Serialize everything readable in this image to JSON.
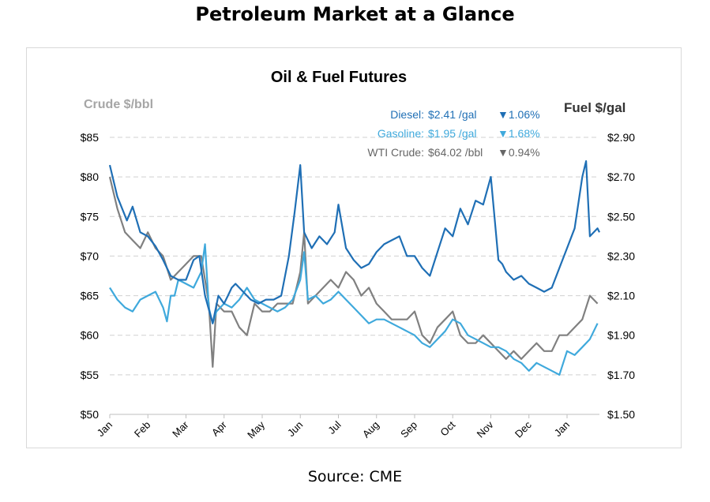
{
  "page_title": "Petroleum Market at a Glance",
  "source": "Source: CME",
  "colors": {
    "diesel": "#1f6fb5",
    "gasoline": "#3fa9dc",
    "crude": "#808080",
    "grid": "#d0d0d0",
    "legend_gray": "#666666"
  },
  "chart_data": {
    "type": "line",
    "title": "Oil & Fuel Futures",
    "y_left_label": "Crude $/bbl",
    "y_right_label": "Fuel $/gal",
    "y_left_lim": [
      50,
      85
    ],
    "y_right_lim": [
      1.5,
      2.9
    ],
    "y_left_ticks": [
      "$85",
      "$80",
      "$75",
      "$70",
      "$65",
      "$60",
      "$55",
      "$50"
    ],
    "y_right_ticks": [
      "$2.90",
      "$2.70",
      "$2.50",
      "$2.30",
      "$2.10",
      "$1.90",
      "$1.70",
      "$1.50"
    ],
    "x_ticks": [
      "Jan",
      "Feb",
      "Mar",
      "Apr",
      "May",
      "Jun",
      "Jul",
      "Aug",
      "Sep",
      "Oct",
      "Nov",
      "Dec",
      "Jan"
    ],
    "grid": "horizontal dashed",
    "legend": [
      {
        "name": "Diesel:",
        "price": "$2.41 /gal",
        "change": "▼1.06%"
      },
      {
        "name": "Gasoline:",
        "price": "$1.95 /gal",
        "change": "▼1.68%"
      },
      {
        "name": "WTI Crude:",
        "price": "$64.02 /bbl",
        "change": "▼0.94%"
      }
    ],
    "series": [
      {
        "name": "Diesel",
        "axis": "right",
        "x": [
          0,
          0.2,
          0.45,
          0.6,
          0.8,
          1.0,
          1.2,
          1.4,
          1.6,
          1.8,
          2.0,
          2.2,
          2.35,
          2.5,
          2.7,
          2.85,
          3.0,
          3.1,
          3.2,
          3.3,
          3.5,
          3.7,
          3.9,
          4.1,
          4.3,
          4.5,
          4.7,
          4.85,
          5.0,
          5.1,
          5.2,
          5.3,
          5.5,
          5.7,
          5.9,
          6.0,
          6.2,
          6.4,
          6.6,
          6.8,
          7.0,
          7.2,
          7.4,
          7.6,
          7.8,
          8.0,
          8.2,
          8.4,
          8.6,
          8.8,
          9.0,
          9.2,
          9.4,
          9.6,
          9.8,
          10.0,
          10.2,
          10.3,
          10.4,
          10.5,
          10.6,
          10.8,
          11.0,
          11.2,
          11.4,
          11.6,
          11.8,
          12.0,
          12.2,
          12.4,
          12.5,
          12.6,
          12.7,
          12.8,
          12.85
        ],
        "y": [
          2.76,
          2.6,
          2.48,
          2.55,
          2.42,
          2.4,
          2.35,
          2.28,
          2.2,
          2.18,
          2.18,
          2.28,
          2.3,
          2.1,
          1.96,
          2.1,
          2.06,
          2.1,
          2.14,
          2.16,
          2.12,
          2.08,
          2.06,
          2.08,
          2.08,
          2.1,
          2.3,
          2.52,
          2.76,
          2.42,
          2.38,
          2.34,
          2.4,
          2.36,
          2.42,
          2.56,
          2.34,
          2.28,
          2.24,
          2.26,
          2.32,
          2.36,
          2.38,
          2.4,
          2.3,
          2.3,
          2.24,
          2.2,
          2.32,
          2.44,
          2.4,
          2.54,
          2.46,
          2.58,
          2.56,
          2.7,
          2.28,
          2.26,
          2.22,
          2.2,
          2.18,
          2.2,
          2.16,
          2.14,
          2.12,
          2.14,
          2.24,
          2.34,
          2.44,
          2.7,
          2.78,
          2.4,
          2.42,
          2.44,
          2.42
        ]
      },
      {
        "name": "Gasoline",
        "axis": "right",
        "x": [
          0,
          0.2,
          0.4,
          0.6,
          0.8,
          1.0,
          1.2,
          1.4,
          1.5,
          1.6,
          1.7,
          1.8,
          2.0,
          2.2,
          2.4,
          2.5,
          2.6,
          2.7,
          2.8,
          3.0,
          3.2,
          3.4,
          3.6,
          3.8,
          4.0,
          4.2,
          4.4,
          4.6,
          4.8,
          5.0,
          5.1,
          5.2,
          5.4,
          5.6,
          5.8,
          6.0,
          6.2,
          6.4,
          6.6,
          6.8,
          7.0,
          7.2,
          7.4,
          7.6,
          7.8,
          8.0,
          8.2,
          8.4,
          8.6,
          8.8,
          9.0,
          9.2,
          9.4,
          9.6,
          9.8,
          10.0,
          10.2,
          10.4,
          10.6,
          10.8,
          11.0,
          11.2,
          11.4,
          11.6,
          11.8,
          12.0,
          12.2,
          12.4,
          12.6,
          12.8
        ],
        "y": [
          2.14,
          2.08,
          2.04,
          2.02,
          2.08,
          2.1,
          2.12,
          2.04,
          1.97,
          2.1,
          2.1,
          2.18,
          2.16,
          2.14,
          2.22,
          2.36,
          2.04,
          1.96,
          2.02,
          2.06,
          2.04,
          2.08,
          2.14,
          2.08,
          2.06,
          2.04,
          2.02,
          2.04,
          2.08,
          2.18,
          2.32,
          2.08,
          2.1,
          2.06,
          2.08,
          2.12,
          2.08,
          2.04,
          2.0,
          1.96,
          1.98,
          1.98,
          1.96,
          1.94,
          1.92,
          1.9,
          1.86,
          1.84,
          1.88,
          1.92,
          1.98,
          1.96,
          1.9,
          1.88,
          1.86,
          1.84,
          1.84,
          1.82,
          1.78,
          1.76,
          1.72,
          1.76,
          1.74,
          1.72,
          1.7,
          1.82,
          1.8,
          1.84,
          1.88,
          1.96
        ]
      },
      {
        "name": "WTI Crude",
        "axis": "left",
        "x": [
          0,
          0.2,
          0.4,
          0.6,
          0.8,
          1.0,
          1.2,
          1.4,
          1.6,
          1.8,
          2.0,
          2.2,
          2.4,
          2.6,
          2.7,
          2.8,
          3.0,
          3.2,
          3.4,
          3.6,
          3.8,
          4.0,
          4.2,
          4.4,
          4.6,
          4.8,
          5.0,
          5.1,
          5.2,
          5.4,
          5.6,
          5.8,
          6.0,
          6.2,
          6.4,
          6.6,
          6.8,
          7.0,
          7.2,
          7.4,
          7.6,
          7.8,
          8.0,
          8.2,
          8.4,
          8.6,
          8.8,
          9.0,
          9.2,
          9.4,
          9.6,
          9.8,
          10.0,
          10.2,
          10.4,
          10.6,
          10.8,
          11.0,
          11.2,
          11.4,
          11.6,
          11.8,
          12.0,
          12.2,
          12.4,
          12.6,
          12.8
        ],
        "y": [
          80,
          76,
          73,
          72,
          71,
          73,
          71,
          70,
          67,
          68,
          69,
          70,
          70,
          64,
          56,
          64,
          63,
          63,
          61,
          60,
          64,
          63,
          63,
          64,
          64,
          64,
          68,
          73,
          64,
          65,
          66,
          67,
          66,
          68,
          67,
          65,
          66,
          64,
          63,
          62,
          62,
          62,
          63,
          60,
          59,
          61,
          62,
          63,
          60,
          59,
          59,
          60,
          59,
          58,
          57,
          58,
          57,
          58,
          59,
          58,
          58,
          60,
          60,
          61,
          62,
          65,
          64
        ]
      }
    ]
  }
}
